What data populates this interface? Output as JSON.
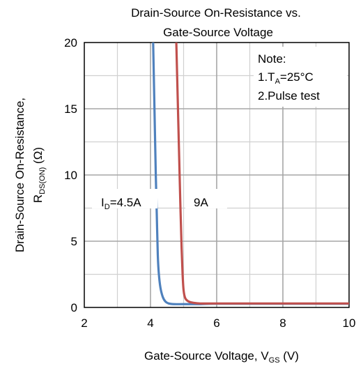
{
  "chart_data": {
    "type": "line",
    "title_line1": "Drain-Source On-Resistance vs.",
    "title_line2": "Gate-Source Voltage",
    "xlabel": {
      "main": "Gate-Source Voltage, V",
      "sub": "GS",
      "tail": " (V)"
    },
    "ylabel": {
      "line1": "Drain-Source On-Resistance,",
      "main": "R",
      "sub": "DS(ON)",
      "tail": " (Ω)"
    },
    "xlim": [
      2,
      10
    ],
    "ylim": [
      0,
      20
    ],
    "xticks": [
      "2",
      "4",
      "6",
      "8",
      "10"
    ],
    "yticks": [
      "0",
      "5",
      "10",
      "15",
      "20"
    ],
    "x_minor_step": 1,
    "y_minor_step": 2.5,
    "grid": true,
    "note": {
      "heading": "Note:",
      "item1_prefix": "1.T",
      "item1_sub": "A",
      "item1_suffix": "=25°C",
      "item2": "2.Pulse test"
    },
    "series": [
      {
        "label_main": "I",
        "label_sub": "D",
        "label_tail": "=4.5A",
        "color": "#4f81bd",
        "x": [
          4.08,
          4.12,
          4.16,
          4.19,
          4.22,
          4.25,
          4.3,
          4.37,
          4.45,
          4.55,
          4.7,
          5.0,
          5.5,
          6.0,
          8.0,
          10.0
        ],
        "y": [
          20,
          15,
          10,
          7,
          4,
          2.6,
          1.5,
          0.8,
          0.45,
          0.3,
          0.25,
          0.25,
          0.25,
          0.28,
          0.28,
          0.28
        ]
      },
      {
        "label_main": "",
        "label_sub": "",
        "label_tail": "9A",
        "color": "#c0504d",
        "x": [
          4.78,
          4.82,
          4.86,
          4.9,
          4.94,
          4.97,
          5.0,
          5.05,
          5.15,
          5.3,
          5.5,
          6.0,
          8.0,
          10.0
        ],
        "y": [
          20,
          16,
          12,
          8,
          4.5,
          2.5,
          1.3,
          0.7,
          0.45,
          0.35,
          0.3,
          0.3,
          0.3,
          0.3
        ]
      }
    ]
  }
}
